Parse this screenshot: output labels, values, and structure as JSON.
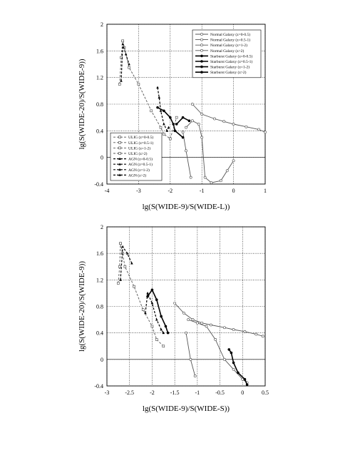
{
  "chart_data": [
    {
      "type": "line",
      "xlabel": "lg(S(WIDE-9)/S(WIDE-L))",
      "ylabel": "lg(S(WIDE-20)/S(WIDE-9))",
      "xlim": [
        -4,
        1
      ],
      "ylim": [
        -0.4,
        2
      ],
      "xticks": [
        "-4",
        "-3",
        "-2",
        "-1",
        "0",
        "1"
      ],
      "yticks": [
        "-0.4",
        "0",
        "0.4",
        "0.8",
        "1.2",
        "1.6",
        "2"
      ],
      "grid": true,
      "legends": [
        {
          "placement": "top-right",
          "entries": [
            "Normal Galaxy (z=0-0.5)",
            "Normal Galaxy (z=0.5-1)",
            "Normal Galaxy (z=1-2)",
            "Normal Galaxy (z>2)",
            "Starburst Galaxy (z=0-0.5)",
            "Starburst Galaxy (z=0.5-1)",
            "Starburst Galaxy (z=1-2)",
            "Starburst Galaxy (z>2)"
          ]
        },
        {
          "placement": "bottom-left",
          "entries": [
            "ULIG (z=0-0.5)",
            "ULIG (z=0.5-1)",
            "ULIG (z=1-2)",
            "ULIG (z>2)",
            "AGN (z=0-0.5)",
            "AGN (z=0.5-1)",
            "AGN (z=1-2)",
            "AGN (z>2)"
          ]
        }
      ],
      "series": [
        {
          "kind": "normal",
          "x": [
            -1.3,
            -1.0,
            -0.6,
            -0.3,
            0.0,
            0.4,
            0.8,
            1.0
          ],
          "y": [
            0.8,
            0.65,
            0.58,
            0.54,
            0.5,
            0.46,
            0.42,
            0.38
          ]
        },
        {
          "kind": "normal",
          "x": [
            -1.5,
            -1.3,
            -1.1,
            -1.0,
            -0.9,
            -0.7,
            -0.4,
            -0.2,
            0.0
          ],
          "y": [
            0.45,
            0.55,
            0.5,
            0.3,
            -0.3,
            -0.38,
            -0.35,
            -0.2,
            -0.05
          ]
        },
        {
          "kind": "normal",
          "x": [
            -1.6,
            -1.5,
            -1.35
          ],
          "y": [
            0.38,
            0.1,
            -0.3
          ]
        },
        {
          "kind": "starburst",
          "x": [
            -2.4,
            -2.2,
            -2.0,
            -1.9,
            -1.85,
            -1.6
          ],
          "y": [
            0.75,
            0.7,
            0.6,
            0.5,
            0.4,
            0.3
          ]
        },
        {
          "kind": "starburst",
          "x": [
            -1.8,
            -1.6,
            -1.4
          ],
          "y": [
            0.5,
            0.6,
            0.55
          ]
        },
        {
          "kind": "ulig",
          "x": [
            -3.5,
            -3.3,
            -3.0,
            -2.6,
            -2.3,
            -2.2,
            -2.0,
            -1.8
          ],
          "y": [
            1.75,
            1.35,
            1.1,
            0.7,
            0.45,
            0.35,
            0.28,
            0.6
          ]
        },
        {
          "kind": "ulig",
          "x": [
            -3.6,
            -3.55,
            -3.5,
            -3.45
          ],
          "y": [
            1.1,
            1.5,
            1.75,
            1.65
          ]
        },
        {
          "kind": "agn",
          "x": [
            -3.55,
            -3.5,
            -3.4,
            -3.3
          ],
          "y": [
            1.15,
            1.7,
            1.55,
            1.4
          ]
        },
        {
          "kind": "agn",
          "x": [
            -2.4,
            -2.35,
            -2.3,
            -2.2,
            -2.1,
            -2.05
          ],
          "y": [
            1.05,
            0.9,
            0.7,
            0.5,
            0.4,
            0.45
          ]
        }
      ]
    },
    {
      "type": "line",
      "xlabel": "lg(S(WIDE-9)/S(WIDE-S))",
      "ylabel": "lg(S(WIDE-20)/S(WIDE-9))",
      "xlim": [
        -3,
        0.5
      ],
      "ylim": [
        -0.4,
        2
      ],
      "xticks": [
        "-3",
        "-2.5",
        "-2",
        "-1.5",
        "-1",
        "-0.5",
        "0",
        "0.5"
      ],
      "yticks": [
        "-0.4",
        "0",
        "0.4",
        "0.8",
        "1.2",
        "1.6",
        "2"
      ],
      "grid": true,
      "series": [
        {
          "kind": "normal",
          "x": [
            -1.5,
            -1.3,
            -1.1,
            -0.9,
            -0.7,
            -0.4,
            -0.2,
            0.05,
            0.3,
            0.45
          ],
          "y": [
            0.85,
            0.7,
            0.6,
            0.55,
            0.52,
            0.48,
            0.45,
            0.42,
            0.38,
            0.35
          ]
        },
        {
          "kind": "normal",
          "x": [
            -1.2,
            -1.0,
            -0.8,
            -0.6,
            -0.4,
            -0.2,
            0.0,
            0.1
          ],
          "y": [
            0.6,
            0.55,
            0.5,
            0.3,
            0.0,
            -0.15,
            -0.3,
            -0.35
          ]
        },
        {
          "kind": "normal",
          "x": [
            -1.25,
            -1.15,
            -1.05
          ],
          "y": [
            0.4,
            0.0,
            -0.25
          ]
        },
        {
          "kind": "starburst",
          "x": [
            -2.1,
            -2.0,
            -1.9,
            -1.8,
            -1.7,
            -1.65
          ],
          "y": [
            0.95,
            1.05,
            0.9,
            0.65,
            0.5,
            0.4
          ]
        },
        {
          "kind": "starburst",
          "x": [
            -0.3,
            -0.25,
            -0.2,
            -0.1,
            0.05,
            0.1
          ],
          "y": [
            0.15,
            0.1,
            -0.05,
            -0.2,
            -0.3,
            -0.38
          ]
        },
        {
          "kind": "ulig",
          "x": [
            -2.7,
            -2.6,
            -2.4,
            -2.2,
            -2.0,
            -1.9,
            -1.75
          ],
          "y": [
            1.75,
            1.4,
            1.1,
            0.75,
            0.5,
            0.3,
            0.2
          ]
        },
        {
          "kind": "ulig",
          "x": [
            -2.75,
            -2.72,
            -2.7,
            -2.65
          ],
          "y": [
            1.15,
            1.4,
            1.75,
            1.6
          ]
        },
        {
          "kind": "agn",
          "x": [
            -2.7,
            -2.65,
            -2.55,
            -2.45
          ],
          "y": [
            1.2,
            1.7,
            1.6,
            1.45
          ]
        },
        {
          "kind": "agn",
          "x": [
            -2.15,
            -2.1,
            -2.0,
            -1.9,
            -1.8,
            -1.75
          ],
          "y": [
            0.7,
            1.0,
            0.85,
            0.6,
            0.45,
            0.4
          ]
        }
      ]
    }
  ]
}
